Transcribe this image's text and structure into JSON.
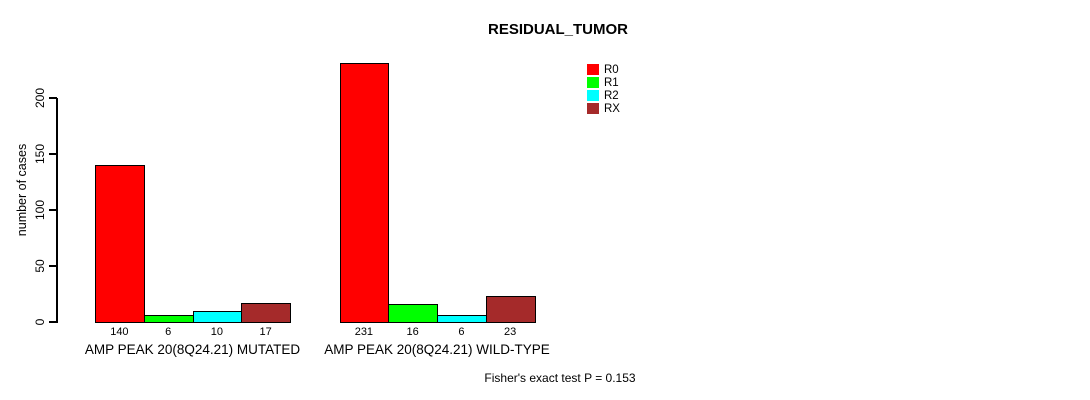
{
  "chart_data": {
    "type": "bar",
    "title": "RESIDUAL_TUMOR",
    "ylabel": "number of cases",
    "xlabel": "",
    "yticks": [
      0,
      50,
      100,
      150,
      200
    ],
    "ylim": [
      0,
      235
    ],
    "grid": false,
    "legend_position": "top-right",
    "legend": [
      {
        "label": "R0",
        "color": "#FF0000"
      },
      {
        "label": "R1",
        "color": "#00FF00"
      },
      {
        "label": "R2",
        "color": "#00FFFF"
      },
      {
        "label": "RX",
        "color": "#A52A2A"
      }
    ],
    "groups": [
      {
        "label": "AMP PEAK 20(8Q24.21) MUTATED",
        "values": [
          140,
          6,
          10,
          17
        ]
      },
      {
        "label": "AMP PEAK 20(8Q24.21) WILD-TYPE",
        "values": [
          231,
          16,
          6,
          23
        ]
      }
    ],
    "annotation": "Fisher's exact test P = 0.153"
  }
}
